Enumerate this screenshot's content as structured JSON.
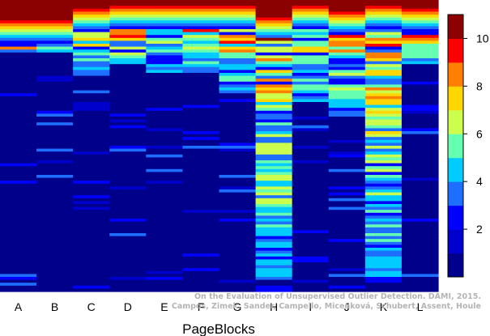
{
  "chart_data": {
    "type": "heatmap",
    "title": "",
    "xlabel": "PageBlocks",
    "ylabel": "",
    "columns": [
      "A",
      "B",
      "C",
      "D",
      "E",
      "F",
      "G",
      "H",
      "I",
      "J",
      "K",
      "L"
    ],
    "row_count": 100,
    "value_range": [
      0,
      11
    ],
    "colorbar": {
      "ticks": [
        2,
        4,
        6,
        8,
        10
      ],
      "palette": [
        "#00008B",
        "#0000CD",
        "#0000FF",
        "#1E6FFF",
        "#00CCFF",
        "#66FFB2",
        "#CCFF4D",
        "#FFD700",
        "#FF7F00",
        "#FF0000",
        "#8B0000"
      ]
    },
    "column_profiles": [
      {
        "column": "A",
        "sparse_top": 18,
        "levels": [
          11,
          11,
          11,
          11,
          11,
          11,
          10,
          9,
          8,
          7,
          6,
          5,
          4,
          3,
          2
        ]
      },
      {
        "column": "B",
        "sparse_top": 18,
        "levels": [
          11,
          11,
          11,
          11,
          11,
          11,
          10,
          9,
          8,
          7,
          6,
          5,
          4,
          3,
          2
        ]
      },
      {
        "column": "C",
        "sparse_top": 25,
        "levels": [
          11,
          11,
          10,
          9,
          8,
          7,
          6,
          5,
          4,
          3,
          2
        ]
      },
      {
        "column": "D",
        "sparse_top": 22,
        "levels": [
          11,
          10,
          9,
          8,
          7,
          6,
          5,
          4,
          3,
          2
        ]
      },
      {
        "column": "E",
        "sparse_top": 25,
        "levels": [
          11,
          10,
          9,
          8,
          7,
          6,
          5,
          4,
          3,
          2
        ]
      },
      {
        "column": "F",
        "sparse_top": 25,
        "levels": [
          11,
          10,
          9,
          8,
          7,
          6,
          5,
          4,
          3,
          2
        ]
      },
      {
        "column": "G",
        "sparse_top": 32,
        "levels": [
          11,
          10,
          9,
          8,
          7,
          6,
          5,
          4,
          3,
          2
        ]
      },
      {
        "column": "H",
        "sparse_top": 95,
        "levels": [
          11,
          11,
          11,
          11,
          11,
          10,
          9,
          8,
          7,
          6,
          5,
          4,
          3
        ]
      },
      {
        "column": "I",
        "sparse_top": 35,
        "levels": [
          11,
          10,
          9,
          8,
          7,
          6,
          5,
          4,
          3,
          2
        ]
      },
      {
        "column": "J",
        "sparse_top": 40,
        "levels": [
          11,
          11,
          11,
          10,
          9,
          8,
          7,
          6,
          5,
          4,
          3,
          2
        ]
      },
      {
        "column": "K",
        "sparse_top": 95,
        "levels": [
          11,
          10,
          9,
          8,
          7,
          6,
          5,
          4,
          3,
          2
        ]
      },
      {
        "column": "L",
        "sparse_top": 22,
        "levels": [
          11,
          11,
          10,
          9,
          8,
          7,
          6,
          5,
          4,
          3,
          2
        ]
      }
    ]
  },
  "watermark": {
    "line1": "On the Evaluation of Unsupervised Outlier Detection. DAMI, 2015.",
    "line2": "Campos, Zimek, Sander, Campello, Micenková, Schubert, Assent, Houle"
  }
}
